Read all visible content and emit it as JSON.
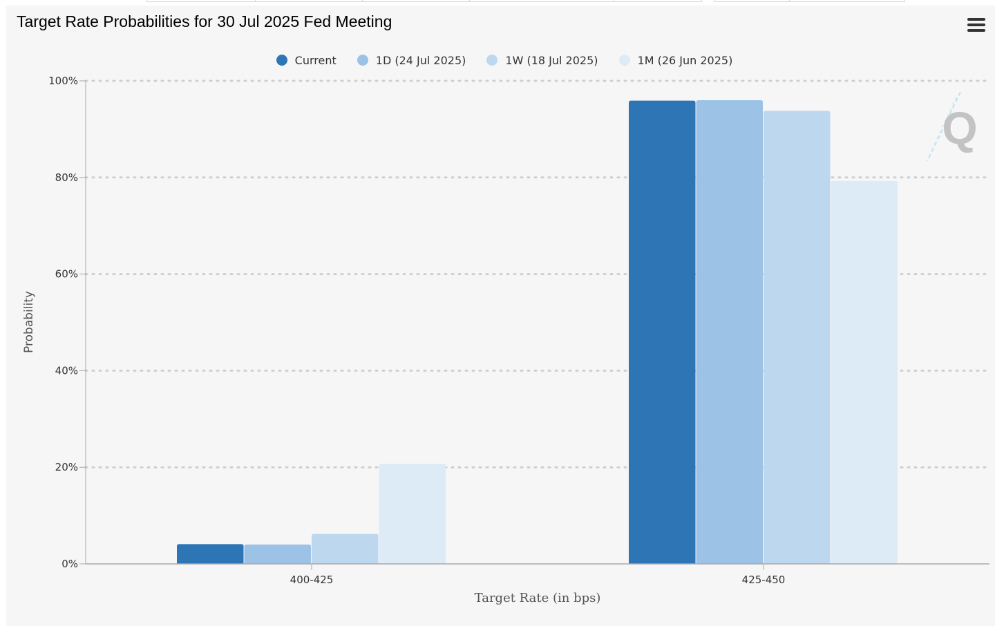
{
  "chart_data": {
    "type": "bar",
    "title": "Target Rate Probabilities for 30 Jul 2025 Fed Meeting",
    "xlabel": "Target Rate (in bps)",
    "ylabel": "Probability",
    "categories": [
      "400-425",
      "425-450"
    ],
    "series": [
      {
        "name": "Current",
        "values": [
          4.1,
          95.9
        ],
        "color": "#2e75b6"
      },
      {
        "name": "1D (24 Jul 2025)",
        "values": [
          4.0,
          96.0
        ],
        "color": "#9cc2e6"
      },
      {
        "name": "1W (18 Jul 2025)",
        "values": [
          6.2,
          93.8
        ],
        "color": "#bdd7ee"
      },
      {
        "name": "1M (26 Jun 2025)",
        "values": [
          20.7,
          79.3
        ],
        "color": "#ddebf7"
      }
    ],
    "ylim": [
      0,
      100
    ],
    "yticks": [
      0,
      20,
      40,
      60,
      80,
      100
    ],
    "ytick_labels": [
      "0%",
      "20%",
      "40%",
      "60%",
      "80%",
      "100%"
    ],
    "grid": true,
    "legend_position": "top-center"
  },
  "toolbar": {
    "menu_icon": "hamburger-menu-icon"
  },
  "watermark": {
    "icon": "quikstrike-logo-icon",
    "text": "Q"
  }
}
